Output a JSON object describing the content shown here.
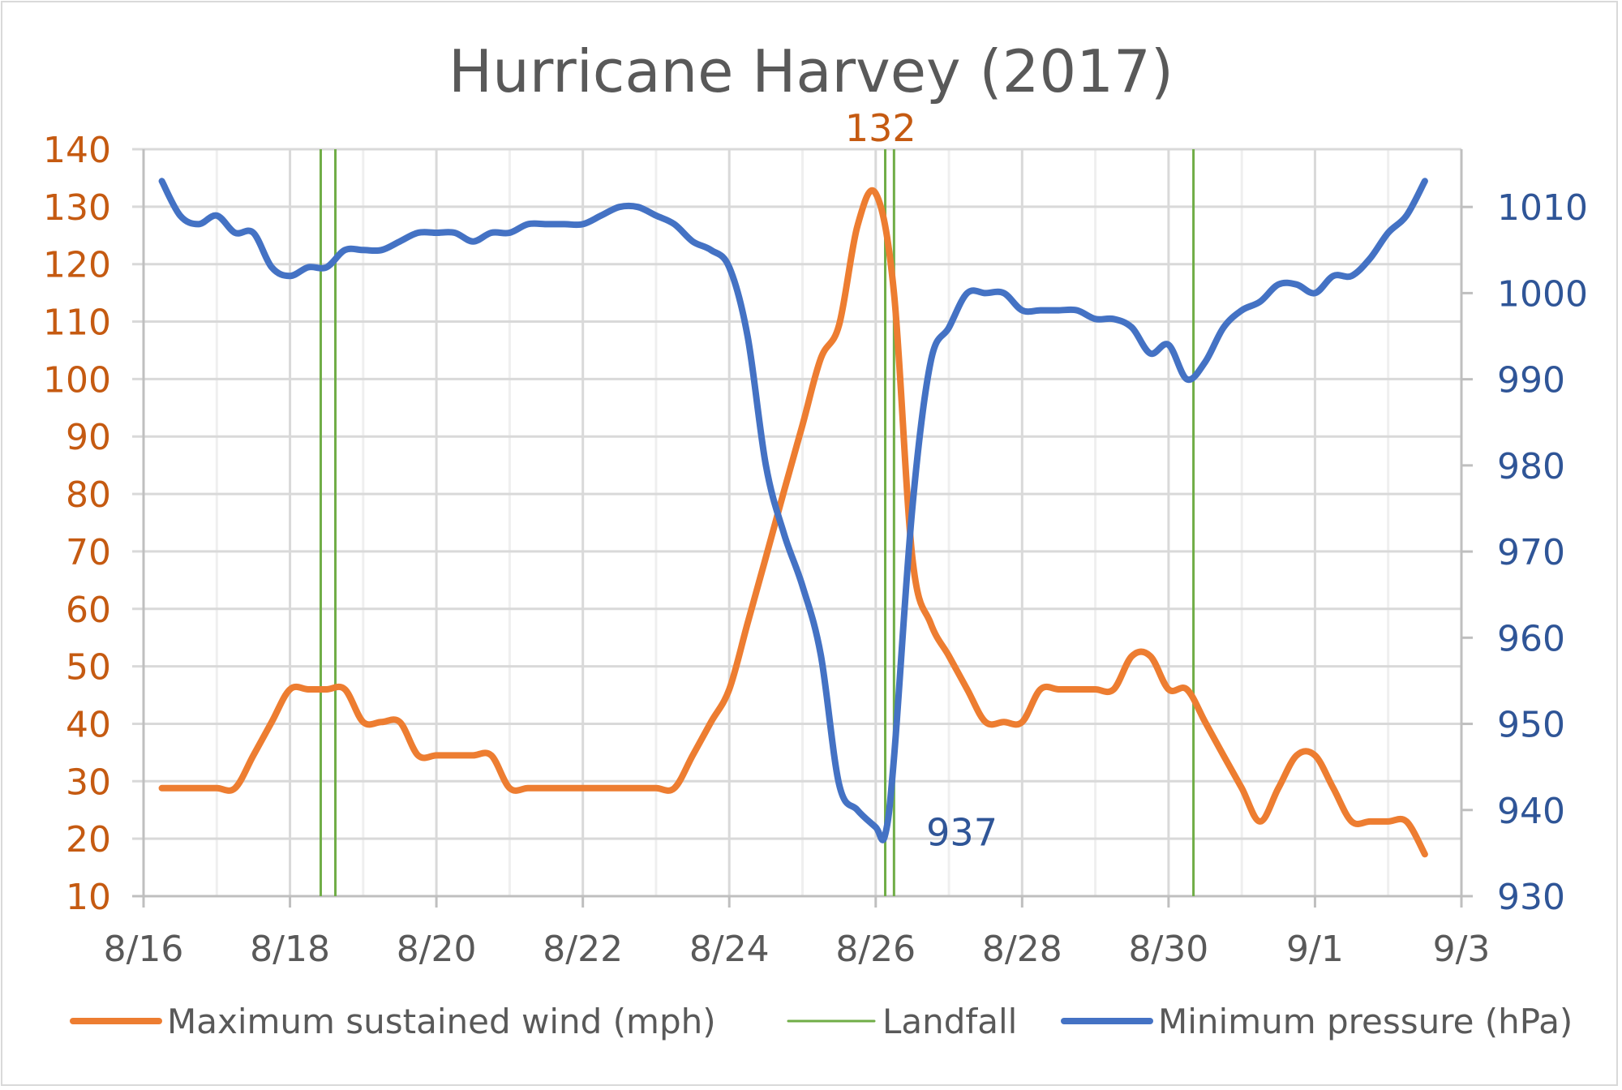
{
  "chart_data": {
    "type": "line",
    "title": "Hurricane Harvey (2017)",
    "x_unit": "days since 8/16",
    "x_ticks": [
      {
        "d": 0,
        "label": "8/16"
      },
      {
        "d": 2,
        "label": "8/18"
      },
      {
        "d": 4,
        "label": "8/20"
      },
      {
        "d": 6,
        "label": "8/22"
      },
      {
        "d": 8,
        "label": "8/24"
      },
      {
        "d": 10,
        "label": "8/26"
      },
      {
        "d": 12,
        "label": "8/28"
      },
      {
        "d": 14,
        "label": "8/30"
      },
      {
        "d": 16,
        "label": "9/1"
      },
      {
        "d": 18,
        "label": "9/3"
      }
    ],
    "xlim": [
      0,
      18
    ],
    "y_left": {
      "label": "Maximum sustained wind (mph)",
      "lim": [
        10,
        140
      ],
      "ticks": [
        10,
        20,
        30,
        40,
        50,
        60,
        70,
        80,
        90,
        100,
        110,
        120,
        130,
        140
      ],
      "color": "#c55a11"
    },
    "y_right": {
      "label": "Minimum pressure (hPa)",
      "lim": [
        930,
        1016.7
      ],
      "ticks": [
        930,
        940,
        950,
        960,
        970,
        980,
        990,
        1000,
        1010
      ],
      "color": "#2f5597"
    },
    "grid": true,
    "legend_position": "bottom",
    "series": [
      {
        "name": "Maximum sustained wind (mph)",
        "axis": "left",
        "color": "#ed7d31",
        "x": [
          0.25,
          0.5,
          0.75,
          1.0,
          1.25,
          1.5,
          1.75,
          2.0,
          2.25,
          2.5,
          2.75,
          3.0,
          3.25,
          3.5,
          3.75,
          4.0,
          4.25,
          4.5,
          4.75,
          5.0,
          5.25,
          5.5,
          5.75,
          6.0,
          6.25,
          6.5,
          6.75,
          7.0,
          7.25,
          7.5,
          7.75,
          8.0,
          8.25,
          8.5,
          8.75,
          9.0,
          9.25,
          9.5,
          9.75,
          10.0,
          10.25,
          10.5,
          10.75,
          11.0,
          11.25,
          11.5,
          11.75,
          12.0,
          12.25,
          12.5,
          12.75,
          13.0,
          13.25,
          13.5,
          13.75,
          14.0,
          14.25,
          14.5,
          14.75,
          15.0,
          15.25,
          15.5,
          15.75,
          16.0,
          16.25,
          16.5,
          16.75,
          17.0,
          17.25,
          17.5
        ],
        "values": [
          28.8,
          28.8,
          28.8,
          28.8,
          28.8,
          34.5,
          40.3,
          46,
          46,
          46,
          46,
          40.3,
          40.3,
          40.3,
          34.5,
          34.5,
          34.5,
          34.5,
          34.5,
          28.8,
          28.8,
          28.8,
          28.8,
          28.8,
          28.8,
          28.8,
          28.8,
          28.8,
          28.8,
          34.5,
          40.3,
          46,
          57.5,
          69,
          80.6,
          92,
          103.6,
          109.4,
          126.6,
          132.3,
          115,
          69,
          57.5,
          51.8,
          46,
          40.3,
          40.3,
          40.3,
          46,
          46,
          46,
          46,
          46,
          51.8,
          51.8,
          46,
          46,
          40.3,
          34.5,
          28.8,
          23,
          28.8,
          34.5,
          34.5,
          28.8,
          23,
          23,
          23,
          23,
          17.3
        ]
      },
      {
        "name": "Minimum pressure (hPa)",
        "axis": "right",
        "color": "#4472c4",
        "x": [
          0.25,
          0.5,
          0.75,
          1.0,
          1.25,
          1.5,
          1.75,
          2.0,
          2.25,
          2.5,
          2.75,
          3.0,
          3.25,
          3.5,
          3.75,
          4.0,
          4.25,
          4.5,
          4.75,
          5.0,
          5.25,
          5.5,
          5.75,
          6.0,
          6.25,
          6.5,
          6.75,
          7.0,
          7.25,
          7.5,
          7.75,
          8.0,
          8.25,
          8.5,
          8.75,
          9.0,
          9.25,
          9.5,
          9.75,
          10.0,
          10.125,
          10.25,
          10.5,
          10.75,
          11.0,
          11.25,
          11.5,
          11.75,
          12.0,
          12.25,
          12.5,
          12.75,
          13.0,
          13.25,
          13.5,
          13.75,
          14.0,
          14.25,
          14.5,
          14.75,
          15.0,
          15.25,
          15.5,
          15.75,
          16.0,
          16.25,
          16.5,
          16.75,
          17.0,
          17.25,
          17.5
        ],
        "values": [
          1013,
          1009,
          1008,
          1009,
          1007,
          1007,
          1003,
          1002,
          1003,
          1003,
          1005,
          1005,
          1005,
          1006,
          1007,
          1007,
          1007,
          1006,
          1007,
          1007,
          1008,
          1008,
          1008,
          1008,
          1009,
          1010,
          1010,
          1009,
          1008,
          1006,
          1005,
          1003,
          995,
          980,
          972,
          966,
          958,
          943,
          940,
          938,
          937,
          946,
          975,
          992,
          996,
          1000,
          1000,
          1000,
          998,
          998,
          998,
          998,
          997,
          997,
          996,
          993,
          994,
          990,
          992,
          996,
          998,
          999,
          1001,
          1001,
          1000,
          1002,
          1002,
          1004,
          1007,
          1009,
          1013
        ]
      }
    ],
    "landfalls": {
      "name": "Landfall",
      "color": "#70ad47",
      "x": [
        2.42,
        2.62,
        10.13,
        10.25,
        14.34
      ]
    },
    "annotations": [
      {
        "series": "Maximum sustained wind (mph)",
        "x": 10.0,
        "text": "132"
      },
      {
        "series": "Minimum pressure (hPa)",
        "x": 10.125,
        "text": "937"
      }
    ]
  }
}
